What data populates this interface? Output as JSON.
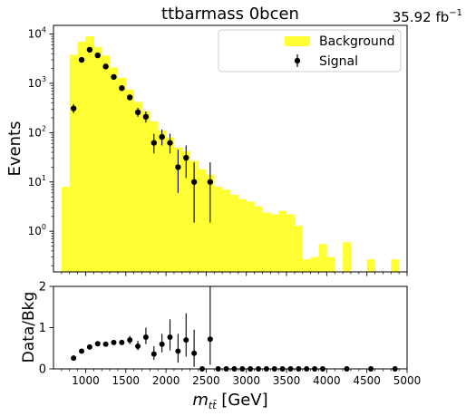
{
  "chart_data": [
    {
      "type": "bar",
      "title": "ttbarmass 0bcen",
      "lumi_label": "35.92 fb",
      "lumi_unit_exp": "−1",
      "ylabel": "Events",
      "yscale": "log",
      "ylim": [
        0.15,
        15000
      ],
      "xlim": [
        600,
        5000
      ],
      "x_tick_labels": [
        "1000",
        "1500",
        "2000",
        "2500",
        "3000",
        "3500",
        "4000",
        "4500",
        "5000"
      ],
      "y_tick_labels": [
        {
          "value": 1,
          "base": "10",
          "exp": "0"
        },
        {
          "value": 10,
          "base": "10",
          "exp": "1"
        },
        {
          "value": 100,
          "base": "10",
          "exp": "2"
        },
        {
          "value": 1000,
          "base": "10",
          "exp": "3"
        },
        {
          "value": 10000,
          "base": "10",
          "exp": "4"
        }
      ],
      "legend": {
        "placement": "top-right",
        "background_label": "Background",
        "signal_label": "Signal"
      },
      "bin_width": 100,
      "background": {
        "color": "#ffff33",
        "bins": [
          {
            "x": 750,
            "y": 8
          },
          {
            "x": 850,
            "y": 3800
          },
          {
            "x": 950,
            "y": 7000
          },
          {
            "x": 1050,
            "y": 9000
          },
          {
            "x": 1150,
            "y": 5500
          },
          {
            "x": 1250,
            "y": 3700
          },
          {
            "x": 1350,
            "y": 2100
          },
          {
            "x": 1450,
            "y": 1300
          },
          {
            "x": 1550,
            "y": 750
          },
          {
            "x": 1650,
            "y": 420
          },
          {
            "x": 1750,
            "y": 270
          },
          {
            "x": 1850,
            "y": 170
          },
          {
            "x": 1950,
            "y": 110
          },
          {
            "x": 2050,
            "y": 80
          },
          {
            "x": 2150,
            "y": 50
          },
          {
            "x": 2250,
            "y": 42
          },
          {
            "x": 2350,
            "y": 27
          },
          {
            "x": 2450,
            "y": 18
          },
          {
            "x": 2550,
            "y": 14
          },
          {
            "x": 2650,
            "y": 8
          },
          {
            "x": 2750,
            "y": 7
          },
          {
            "x": 2850,
            "y": 5.5
          },
          {
            "x": 2950,
            "y": 4.5
          },
          {
            "x": 3050,
            "y": 4
          },
          {
            "x": 3150,
            "y": 3.2
          },
          {
            "x": 3250,
            "y": 2.4
          },
          {
            "x": 3350,
            "y": 2.2
          },
          {
            "x": 3450,
            "y": 2.6
          },
          {
            "x": 3550,
            "y": 2.2
          },
          {
            "x": 3650,
            "y": 1.3
          },
          {
            "x": 3750,
            "y": 0.27
          },
          {
            "x": 3850,
            "y": 0.3
          },
          {
            "x": 3950,
            "y": 0.55
          },
          {
            "x": 4050,
            "y": 0.3
          },
          {
            "x": 4250,
            "y": 0.6
          },
          {
            "x": 4550,
            "y": 0.27
          },
          {
            "x": 4850,
            "y": 0.27
          }
        ]
      },
      "signal": {
        "color": "#000000",
        "points": [
          {
            "x": 850,
            "y": 310,
            "lo": 250,
            "hi": 380
          },
          {
            "x": 950,
            "y": 3000,
            "lo": 2800,
            "hi": 3200
          },
          {
            "x": 1050,
            "y": 4800,
            "lo": 4500,
            "hi": 5100
          },
          {
            "x": 1150,
            "y": 3700,
            "lo": 3450,
            "hi": 3950
          },
          {
            "x": 1250,
            "y": 2200,
            "lo": 2050,
            "hi": 2350
          },
          {
            "x": 1350,
            "y": 1350,
            "lo": 1230,
            "hi": 1470
          },
          {
            "x": 1450,
            "y": 800,
            "lo": 720,
            "hi": 880
          },
          {
            "x": 1550,
            "y": 520,
            "lo": 450,
            "hi": 590
          },
          {
            "x": 1650,
            "y": 260,
            "lo": 210,
            "hi": 320
          },
          {
            "x": 1750,
            "y": 210,
            "lo": 160,
            "hi": 270
          },
          {
            "x": 1850,
            "y": 62,
            "lo": 38,
            "hi": 95
          },
          {
            "x": 1950,
            "y": 82,
            "lo": 55,
            "hi": 115
          },
          {
            "x": 2050,
            "y": 62,
            "lo": 38,
            "hi": 95
          },
          {
            "x": 2150,
            "y": 20,
            "lo": 6,
            "hi": 45
          },
          {
            "x": 2250,
            "y": 31,
            "lo": 12,
            "hi": 55
          },
          {
            "x": 2350,
            "y": 10,
            "lo": 1.5,
            "hi": 25
          },
          {
            "x": 2550,
            "y": 10,
            "lo": 1.5,
            "hi": 25
          }
        ]
      }
    },
    {
      "type": "scatter",
      "ylabel": "Data/Bkg",
      "xlabel_main": "m",
      "xlabel_sub": "tt̄",
      "xlabel_unit": " [GeV]",
      "xlim": [
        600,
        5000
      ],
      "ylim": [
        0,
        2
      ],
      "x_tick_labels": [
        "1000",
        "1500",
        "2000",
        "2500",
        "3000",
        "3500",
        "4000",
        "4500",
        "5000"
      ],
      "y_tick_labels": [
        "0",
        "1",
        "2"
      ],
      "points": [
        {
          "x": 850,
          "y": 0.26,
          "lo": 0.26,
          "hi": 0.26
        },
        {
          "x": 950,
          "y": 0.43,
          "lo": 0.43,
          "hi": 0.43
        },
        {
          "x": 1050,
          "y": 0.53,
          "lo": 0.53,
          "hi": 0.53
        },
        {
          "x": 1150,
          "y": 0.61,
          "lo": 0.61,
          "hi": 0.61
        },
        {
          "x": 1250,
          "y": 0.6,
          "lo": 0.6,
          "hi": 0.6
        },
        {
          "x": 1350,
          "y": 0.64,
          "lo": 0.62,
          "hi": 0.66
        },
        {
          "x": 1450,
          "y": 0.64,
          "lo": 0.61,
          "hi": 0.67
        },
        {
          "x": 1550,
          "y": 0.7,
          "lo": 0.6,
          "hi": 0.8
        },
        {
          "x": 1650,
          "y": 0.55,
          "lo": 0.45,
          "hi": 0.68
        },
        {
          "x": 1750,
          "y": 0.77,
          "lo": 0.6,
          "hi": 1.0
        },
        {
          "x": 1850,
          "y": 0.36,
          "lo": 0.22,
          "hi": 0.55
        },
        {
          "x": 1950,
          "y": 0.6,
          "lo": 0.4,
          "hi": 0.85
        },
        {
          "x": 2050,
          "y": 0.77,
          "lo": 0.45,
          "hi": 1.2
        },
        {
          "x": 2150,
          "y": 0.43,
          "lo": 0.15,
          "hi": 0.85
        },
        {
          "x": 2250,
          "y": 0.7,
          "lo": 0.3,
          "hi": 1.35
        },
        {
          "x": 2350,
          "y": 0.38,
          "lo": 0.05,
          "hi": 0.95
        },
        {
          "x": 2450,
          "y": 0,
          "lo": 0,
          "hi": 0
        },
        {
          "x": 2550,
          "y": 0.72,
          "lo": 0.1,
          "hi": 2.0
        },
        {
          "x": 2650,
          "y": 0,
          "lo": 0,
          "hi": 0
        },
        {
          "x": 2750,
          "y": 0,
          "lo": 0,
          "hi": 0
        },
        {
          "x": 2850,
          "y": 0,
          "lo": 0,
          "hi": 0
        },
        {
          "x": 2950,
          "y": 0,
          "lo": 0,
          "hi": 0
        },
        {
          "x": 3050,
          "y": 0,
          "lo": 0,
          "hi": 0
        },
        {
          "x": 3150,
          "y": 0,
          "lo": 0,
          "hi": 0
        },
        {
          "x": 3250,
          "y": 0,
          "lo": 0,
          "hi": 0
        },
        {
          "x": 3350,
          "y": 0,
          "lo": 0,
          "hi": 0
        },
        {
          "x": 3450,
          "y": 0,
          "lo": 0,
          "hi": 0
        },
        {
          "x": 3550,
          "y": 0,
          "lo": 0,
          "hi": 0
        },
        {
          "x": 3650,
          "y": 0,
          "lo": 0,
          "hi": 0
        },
        {
          "x": 3750,
          "y": 0,
          "lo": 0,
          "hi": 0
        },
        {
          "x": 3850,
          "y": 0,
          "lo": 0,
          "hi": 0
        },
        {
          "x": 3950,
          "y": 0,
          "lo": 0,
          "hi": 0
        },
        {
          "x": 4250,
          "y": 0,
          "lo": 0,
          "hi": 0
        },
        {
          "x": 4550,
          "y": 0,
          "lo": 0,
          "hi": 0
        },
        {
          "x": 4850,
          "y": 0,
          "lo": 0,
          "hi": 0
        }
      ]
    }
  ]
}
